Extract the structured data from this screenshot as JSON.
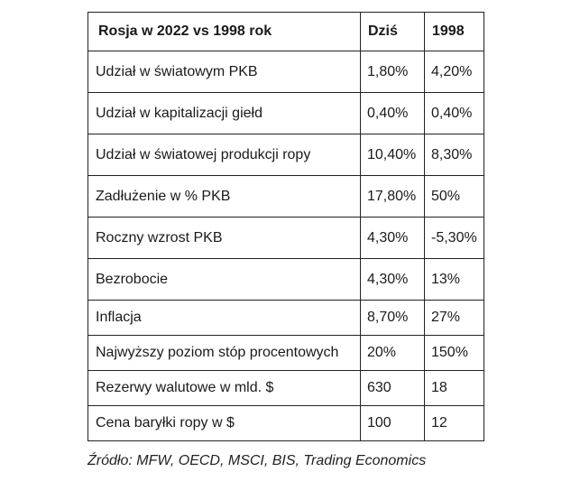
{
  "table": {
    "headers": [
      "Rosja w 2022 vs 1998 rok",
      "Dziś",
      "1998"
    ],
    "rows": [
      {
        "label": "Udział w światowym PKB",
        "today": "1,80%",
        "y1998": "4,20%"
      },
      {
        "label": "Udział w kapitalizacji giełd",
        "today": "0,40%",
        "y1998": "0,40%"
      },
      {
        "label": "Udział w światowej produkcji ropy",
        "today": "10,40%",
        "y1998": "8,30%"
      },
      {
        "label": "Zadłużenie w % PKB",
        "today": "17,80%",
        "y1998": "50%"
      },
      {
        "label": "Roczny wzrost PKB",
        "today": "4,30%",
        "y1998": "-5,30%"
      },
      {
        "label": "Bezrobocie",
        "today": "4,30%",
        "y1998": "13%"
      },
      {
        "label": "Inflacja",
        "today": "8,70%",
        "y1998": "27%"
      },
      {
        "label": "Najwyższy poziom stóp procentowych",
        "today": "20%",
        "y1998": "150%"
      },
      {
        "label": "Rezerwy walutowe w mld. $",
        "today": "630",
        "y1998": "18"
      },
      {
        "label": "Cena baryłki ropy w $",
        "today": "100",
        "y1998": "12"
      }
    ]
  },
  "source": "Źródło: MFW, OECD, MSCI, BIS, Trading Economics"
}
